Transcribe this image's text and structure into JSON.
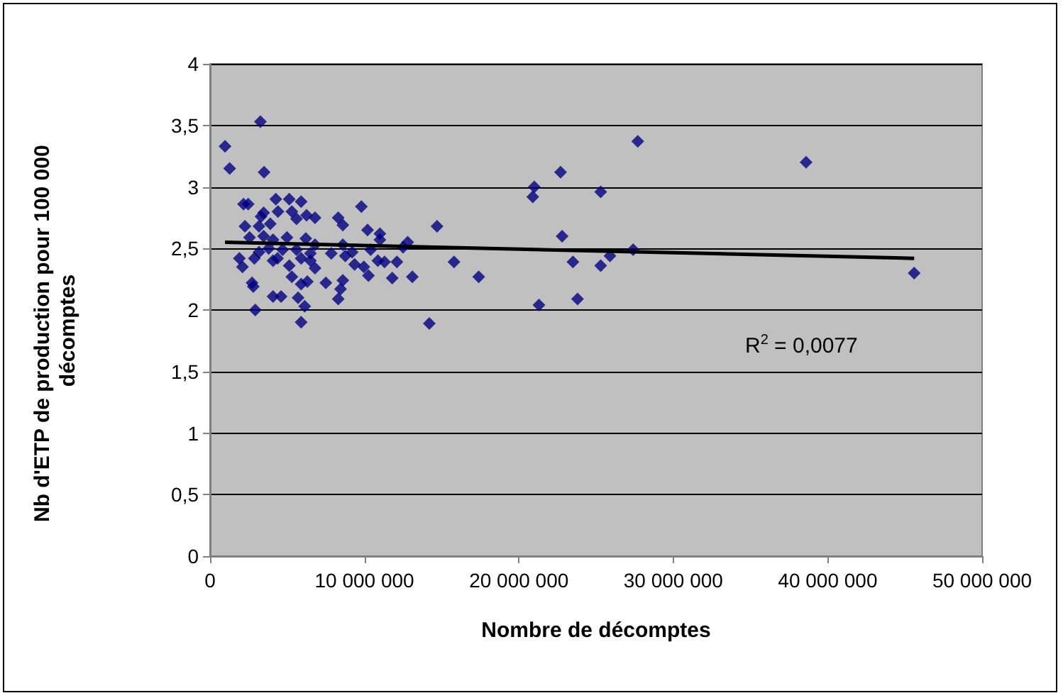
{
  "chart_data": {
    "type": "scatter",
    "xlabel": "Nombre de décomptes",
    "ylabel": "Nb d'ETP de production pour 100 000 décomptes",
    "annotations": [
      "R$^{2}$ = 0,0077"
    ],
    "xlim": [
      0,
      50000000
    ],
    "xticks": [
      0,
      {
        "value": 10000000,
        "label": "10 000 000"
      },
      {
        "value": 20000000,
        "label": "20 000 000"
      },
      {
        "value": 30000000,
        "label": "30 000 000"
      },
      {
        "value": 40000000,
        "label": "40 000 000"
      },
      {
        "value": 50000000,
        "label": "50 000 000"
      }
    ],
    "ylim": [
      0,
      4
    ],
    "yticks": [
      0,
      {
        "value": 0.5,
        "label": "0,5"
      },
      1,
      {
        "value": 1.5,
        "label": "1,5"
      },
      2,
      {
        "value": 2.5,
        "label": "2,5"
      },
      3,
      {
        "value": 3.5,
        "label": "3,5"
      },
      4
    ],
    "grid": "y",
    "marker": "diamond",
    "series": [
      {
        "color": "#000080",
        "x": [
          3260000,
          970000,
          1270000,
          3500000,
          2170000,
          2470000,
          4260000,
          5130000,
          5900000,
          4400000,
          5300000,
          9800000,
          6250000,
          6800000,
          8300000,
          8600000,
          5600000,
          3300000,
          2260000,
          3170000,
          3900000,
          10200000,
          11000000,
          11000000,
          14700000,
          2560000,
          3470000,
          4080000,
          4980000,
          6200000,
          6800000,
          8600000,
          12800000,
          12500000,
          1900000,
          2100000,
          2870000,
          3170000,
          4370000,
          4080000,
          5130000,
          5900000,
          6500000,
          6800000,
          7850000,
          8760000,
          9360000,
          9960000,
          10260000,
          10870000,
          11300000,
          12100000,
          11800000,
          13100000,
          15800000,
          17400000,
          2720000,
          2800000,
          5300000,
          5900000,
          6300000,
          7500000,
          8600000,
          8450000,
          4080000,
          4600000,
          5700000,
          8300000,
          6130000,
          2930000,
          5900000,
          14200000,
          4700000,
          5600000,
          6500000,
          3800000,
          9200000,
          10400000,
          3470000,
          21000000,
          20900000,
          22700000,
          25300000,
          27700000,
          22800000,
          21300000,
          23500000,
          23800000,
          25300000,
          25900000,
          27400000,
          38600000,
          45600000
        ],
        "values": [
          3.53,
          3.33,
          3.15,
          3.12,
          2.86,
          2.86,
          2.9,
          2.9,
          2.88,
          2.8,
          2.8,
          2.84,
          2.77,
          2.75,
          2.75,
          2.69,
          2.74,
          2.76,
          2.68,
          2.68,
          2.7,
          2.65,
          2.62,
          2.57,
          2.68,
          2.59,
          2.6,
          2.57,
          2.59,
          2.58,
          2.53,
          2.53,
          2.55,
          2.51,
          2.42,
          2.35,
          2.42,
          2.47,
          2.42,
          2.4,
          2.36,
          2.42,
          2.4,
          2.34,
          2.46,
          2.44,
          2.37,
          2.35,
          2.28,
          2.4,
          2.39,
          2.39,
          2.26,
          2.27,
          2.39,
          2.27,
          2.22,
          2.19,
          2.27,
          2.21,
          2.23,
          2.22,
          2.24,
          2.17,
          2.11,
          2.11,
          2.1,
          2.09,
          2.03,
          2.0,
          1.9,
          1.89,
          2.49,
          2.49,
          2.46,
          2.5,
          2.47,
          2.49,
          2.79,
          3.0,
          2.92,
          3.12,
          2.96,
          3.37,
          2.6,
          2.04,
          2.39,
          2.09,
          2.36,
          2.44,
          2.49,
          3.2,
          2.3
        ]
      },
      {
        "type": "line",
        "color": "#000000",
        "marker": "none",
        "x": [
          970000,
          45600000
        ],
        "values": [
          2.55,
          2.42
        ]
      }
    ]
  }
}
